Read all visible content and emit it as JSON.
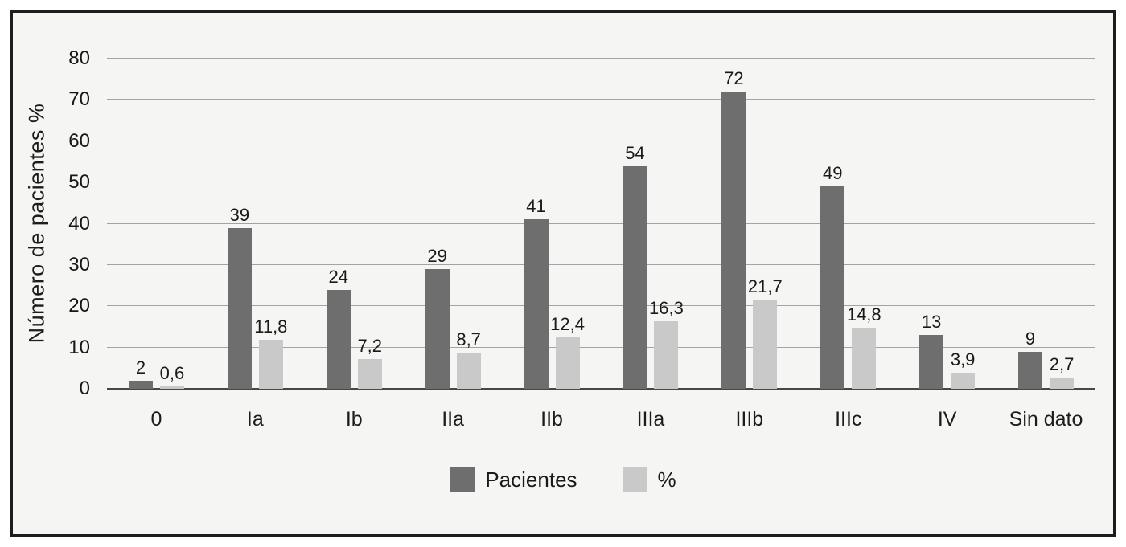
{
  "chart_data": {
    "type": "bar",
    "title": "",
    "xlabel": "",
    "ylabel": "Número de pacientes %",
    "categories": [
      "0",
      "Ia",
      "Ib",
      "IIa",
      "IIb",
      "IIIa",
      "IIIb",
      "IIIc",
      "IV",
      "Sin dato"
    ],
    "series": [
      {
        "name": "Pacientes",
        "color": "#6e6e6e",
        "values": [
          2,
          39,
          24,
          29,
          41,
          54,
          72,
          49,
          13,
          9
        ],
        "labels": [
          "2",
          "39",
          "24",
          "29",
          "41",
          "54",
          "72",
          "49",
          "13",
          "9"
        ]
      },
      {
        "name": "%",
        "color": "#c9c9c9",
        "values": [
          0.6,
          11.8,
          7.2,
          8.7,
          12.4,
          16.3,
          21.7,
          14.8,
          3.9,
          2.7
        ],
        "labels": [
          "0,6",
          "11,8",
          "7,2",
          "8,7",
          "12,4",
          "16,3",
          "21,7",
          "14,8",
          "3,9",
          "2,7"
        ]
      }
    ],
    "ylim": [
      0,
      80
    ],
    "yticks": [
      0,
      10,
      20,
      30,
      40,
      50,
      60,
      70,
      80
    ],
    "grid": true,
    "legend_position": "bottom",
    "legend_labels": [
      "Pacientes",
      "%"
    ]
  },
  "colors": {
    "frame_background": "#f5f5f3",
    "frame_border": "#1d1d1d",
    "gridline": "#a3a3a3",
    "axis_baseline": "#474747",
    "text": "#1a1a1a",
    "bar_pacientes": "#6e6e6e",
    "bar_percent": "#c9c9c9"
  }
}
